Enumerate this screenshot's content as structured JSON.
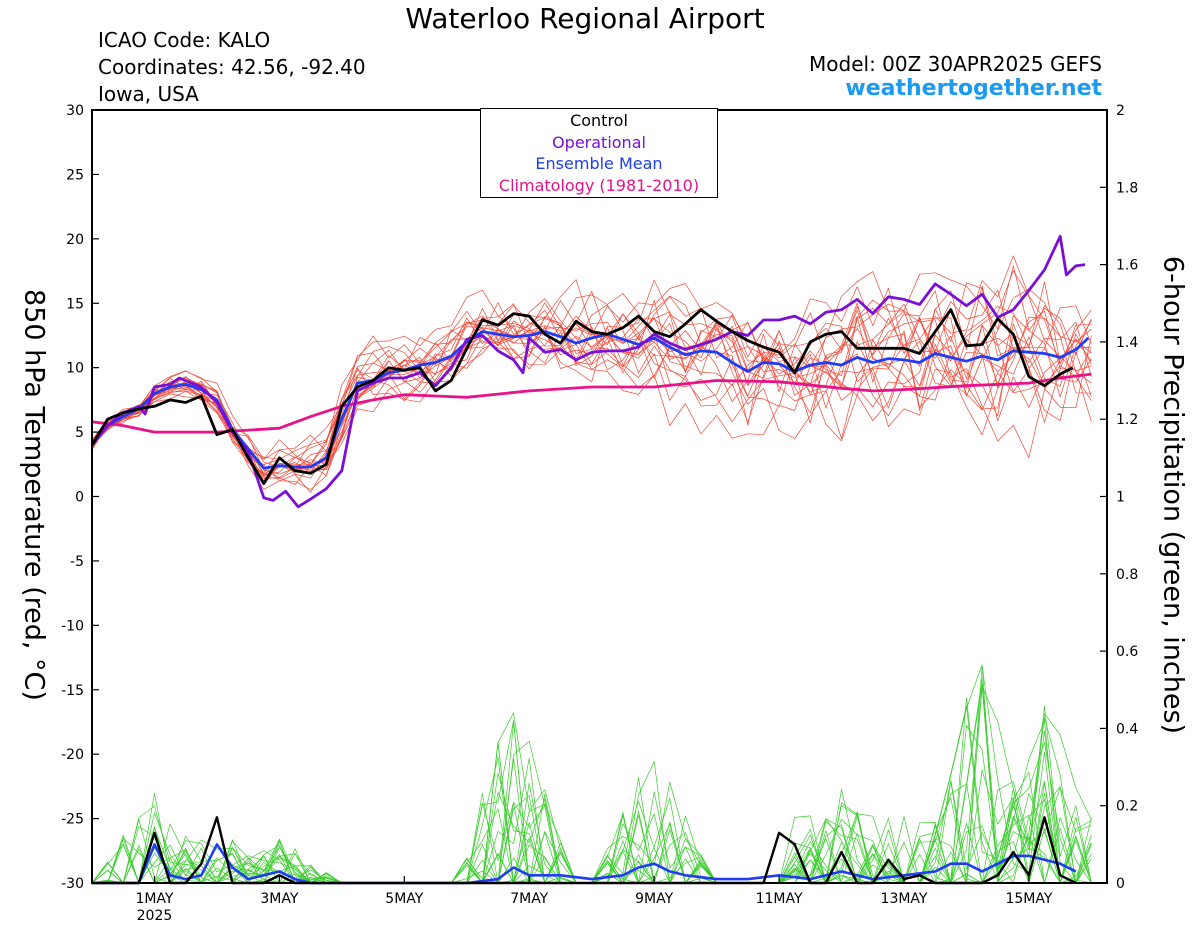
{
  "header": {
    "title": "Waterloo Regional Airport",
    "icao": "ICAO Code: KALO",
    "coords": "Coordinates: 42.56, -92.40",
    "region": "Iowa, USA",
    "model": "Model: 00Z 30APR2025 GEFS",
    "site": "weathertogether.net"
  },
  "colors": {
    "control": "#000000",
    "operational": "#7a0fd6",
    "ensemble_mean": "#1f3df5",
    "climatology": "#e8128a",
    "members_temp": "#f04a3a",
    "members_precip": "#3ccc2e",
    "site": "#1a9bf0"
  },
  "chart_data": {
    "type": "line",
    "title": "Waterloo Regional Airport",
    "ylabel_left": "850 hPa Temperature (red, °C)",
    "ylabel_right": "6-hour Precipitation (green, inches)",
    "ylim_left": [
      -30,
      30
    ],
    "ylim_right": [
      0,
      2
    ],
    "yticks_left": [
      30,
      25,
      20,
      15,
      10,
      5,
      0,
      -5,
      -10,
      -15,
      -20,
      -25,
      -30
    ],
    "yticks_right": [
      2,
      1.8,
      1.6,
      1.4,
      1.2,
      1,
      0.8,
      0.6,
      0.4,
      0.2,
      0
    ],
    "xlim_days": [
      0,
      16.25
    ],
    "xticks": [
      {
        "day": 1,
        "label": "1MAY",
        "sub": "2025"
      },
      {
        "day": 3,
        "label": "3MAY",
        "sub": ""
      },
      {
        "day": 5,
        "label": "5MAY",
        "sub": ""
      },
      {
        "day": 7,
        "label": "7MAY",
        "sub": ""
      },
      {
        "day": 9,
        "label": "9MAY",
        "sub": ""
      },
      {
        "day": 11,
        "label": "11MAY",
        "sub": ""
      },
      {
        "day": 13,
        "label": "13MAY",
        "sub": ""
      },
      {
        "day": 15,
        "label": "15MAY",
        "sub": ""
      }
    ],
    "legend": [
      "Control",
      "Operational",
      "Ensemble Mean",
      "Climatology (1981-2010)"
    ],
    "legend_position": "top-center",
    "grid": false,
    "temperature": {
      "control": [
        [
          0,
          4
        ],
        [
          0.25,
          6
        ],
        [
          0.5,
          6.5
        ],
        [
          0.75,
          6.8
        ],
        [
          1,
          7
        ],
        [
          1.25,
          7.5
        ],
        [
          1.5,
          7.3
        ],
        [
          1.75,
          7.8
        ],
        [
          2,
          4.8
        ],
        [
          2.25,
          5.2
        ],
        [
          2.5,
          3
        ],
        [
          2.75,
          1
        ],
        [
          3,
          3
        ],
        [
          3.25,
          2
        ],
        [
          3.5,
          1.8
        ],
        [
          3.75,
          2.5
        ],
        [
          4,
          7
        ],
        [
          4.25,
          8.5
        ],
        [
          4.5,
          9
        ],
        [
          4.75,
          10
        ],
        [
          5,
          9.8
        ],
        [
          5.25,
          10
        ],
        [
          5.5,
          8.2
        ],
        [
          5.75,
          9
        ],
        [
          6,
          11.5
        ],
        [
          6.25,
          13.7
        ],
        [
          6.5,
          13.3
        ],
        [
          6.75,
          14.2
        ],
        [
          7,
          14
        ],
        [
          7.25,
          12.6
        ],
        [
          7.5,
          11.9
        ],
        [
          7.75,
          13.6
        ],
        [
          8,
          12.8
        ],
        [
          8.25,
          12.6
        ],
        [
          8.5,
          13.1
        ],
        [
          8.75,
          14
        ],
        [
          9,
          12.8
        ],
        [
          9.25,
          12.4
        ],
        [
          9.5,
          13.4
        ],
        [
          9.75,
          14.5
        ],
        [
          10,
          13.6
        ],
        [
          10.25,
          12.8
        ],
        [
          10.5,
          12.1
        ],
        [
          10.75,
          11.6
        ],
        [
          11,
          11.2
        ],
        [
          11.25,
          9.6
        ],
        [
          11.5,
          12
        ],
        [
          11.75,
          12.6
        ],
        [
          12,
          12.8
        ],
        [
          12.25,
          11.5
        ],
        [
          12.5,
          11.5
        ],
        [
          12.75,
          11.5
        ],
        [
          13,
          11.5
        ],
        [
          13.25,
          11.1
        ],
        [
          13.5,
          12.8
        ],
        [
          13.75,
          14.5
        ],
        [
          14,
          11.7
        ],
        [
          14.25,
          11.8
        ],
        [
          14.5,
          13.8
        ],
        [
          14.75,
          12.6
        ],
        [
          15,
          9.3
        ],
        [
          15.25,
          8.6
        ],
        [
          15.5,
          9.5
        ],
        [
          15.7,
          10
        ]
      ],
      "operational": [
        [
          0,
          4
        ],
        [
          0.25,
          5.5
        ],
        [
          0.5,
          6.5
        ],
        [
          0.75,
          7
        ],
        [
          0.85,
          6.4
        ],
        [
          1,
          8.5
        ],
        [
          1.25,
          8.7
        ],
        [
          1.4,
          9.2
        ],
        [
          1.75,
          8.5
        ],
        [
          2,
          7.3
        ],
        [
          2.25,
          5
        ],
        [
          2.5,
          3.5
        ],
        [
          2.75,
          -0.1
        ],
        [
          2.9,
          -0.3
        ],
        [
          3.1,
          0.4
        ],
        [
          3.3,
          -0.8
        ],
        [
          3.5,
          -0.2
        ],
        [
          3.75,
          0.6
        ],
        [
          4,
          2
        ],
        [
          4.25,
          8.2
        ],
        [
          4.5,
          8.8
        ],
        [
          4.75,
          9.2
        ],
        [
          5,
          9.2
        ],
        [
          5.25,
          9.6
        ],
        [
          5.5,
          8.6
        ],
        [
          5.75,
          10
        ],
        [
          6,
          12.2
        ],
        [
          6.25,
          12.5
        ],
        [
          6.5,
          11.3
        ],
        [
          6.75,
          10.6
        ],
        [
          6.9,
          9.6
        ],
        [
          7,
          12.3
        ],
        [
          7.25,
          11.2
        ],
        [
          7.5,
          11.4
        ],
        [
          7.75,
          10.6
        ],
        [
          8,
          11.2
        ],
        [
          8.25,
          11.3
        ],
        [
          8.5,
          11.3
        ],
        [
          8.75,
          11.6
        ],
        [
          9,
          12.6
        ],
        [
          9.25,
          11.9
        ],
        [
          9.5,
          11.4
        ],
        [
          9.75,
          11.8
        ],
        [
          10,
          12.2
        ],
        [
          10.25,
          12.8
        ],
        [
          10.5,
          12.5
        ],
        [
          10.75,
          13.7
        ],
        [
          11,
          13.7
        ],
        [
          11.25,
          14
        ],
        [
          11.5,
          13.4
        ],
        [
          11.75,
          14.3
        ],
        [
          12,
          14.5
        ],
        [
          12.25,
          15.3
        ],
        [
          12.5,
          14.2
        ],
        [
          12.75,
          15.5
        ],
        [
          13,
          15.3
        ],
        [
          13.25,
          14.9
        ],
        [
          13.5,
          16.5
        ],
        [
          13.75,
          15.7
        ],
        [
          14,
          14.8
        ],
        [
          14.25,
          15.7
        ],
        [
          14.5,
          13.9
        ],
        [
          14.75,
          14.5
        ],
        [
          15,
          16
        ],
        [
          15.25,
          17.6
        ],
        [
          15.5,
          20.2
        ],
        [
          15.6,
          17.2
        ],
        [
          15.75,
          17.9
        ],
        [
          15.9,
          18
        ]
      ],
      "ensemble_mean": [
        [
          0,
          4
        ],
        [
          0.25,
          5.5
        ],
        [
          0.5,
          6.2
        ],
        [
          0.75,
          6.8
        ],
        [
          1,
          8
        ],
        [
          1.25,
          8.5
        ],
        [
          1.5,
          8.7
        ],
        [
          1.75,
          8.3
        ],
        [
          2,
          7.5
        ],
        [
          2.25,
          5.2
        ],
        [
          2.5,
          3.7
        ],
        [
          2.75,
          2.2
        ],
        [
          3,
          2.4
        ],
        [
          3.25,
          2.3
        ],
        [
          3.5,
          2.3
        ],
        [
          3.75,
          3
        ],
        [
          4,
          6
        ],
        [
          4.25,
          8.8
        ],
        [
          4.5,
          9
        ],
        [
          4.75,
          9.6
        ],
        [
          5,
          9.8
        ],
        [
          5.25,
          10.2
        ],
        [
          5.5,
          10.4
        ],
        [
          5.75,
          10.9
        ],
        [
          6,
          12
        ],
        [
          6.25,
          12.8
        ],
        [
          6.5,
          12.6
        ],
        [
          6.75,
          12.4
        ],
        [
          7,
          12.5
        ],
        [
          7.25,
          12.8
        ],
        [
          7.5,
          12.4
        ],
        [
          7.75,
          11.9
        ],
        [
          8,
          12.3
        ],
        [
          8.25,
          12.6
        ],
        [
          8.5,
          12.2
        ],
        [
          8.75,
          11.8
        ],
        [
          9,
          12.3
        ],
        [
          9.25,
          11.6
        ],
        [
          9.5,
          11
        ],
        [
          9.75,
          11.3
        ],
        [
          10,
          11.2
        ],
        [
          10.25,
          10.4
        ],
        [
          10.5,
          9.7
        ],
        [
          10.75,
          10.4
        ],
        [
          11,
          10.3
        ],
        [
          11.25,
          9.7
        ],
        [
          11.5,
          10.2
        ],
        [
          11.75,
          10.4
        ],
        [
          12,
          10.2
        ],
        [
          12.25,
          10.8
        ],
        [
          12.5,
          10.4
        ],
        [
          12.75,
          10.7
        ],
        [
          13,
          10.6
        ],
        [
          13.25,
          10.4
        ],
        [
          13.5,
          11.1
        ],
        [
          13.75,
          10.8
        ],
        [
          14,
          10.5
        ],
        [
          14.25,
          10.9
        ],
        [
          14.5,
          10.6
        ],
        [
          14.75,
          11.3
        ],
        [
          15,
          11.2
        ],
        [
          15.25,
          11.1
        ],
        [
          15.5,
          10.8
        ],
        [
          15.75,
          11.4
        ],
        [
          15.95,
          12.3
        ]
      ],
      "climatology": [
        [
          0,
          5.8
        ],
        [
          0.5,
          5.5
        ],
        [
          1,
          5
        ],
        [
          2,
          5
        ],
        [
          3,
          5.3
        ],
        [
          3.5,
          6.2
        ],
        [
          4,
          7
        ],
        [
          4.5,
          7.5
        ],
        [
          5,
          7.9
        ],
        [
          5.5,
          7.8
        ],
        [
          6,
          7.7
        ],
        [
          7,
          8.2
        ],
        [
          8,
          8.5
        ],
        [
          9,
          8.5
        ],
        [
          10,
          9
        ],
        [
          11,
          8.9
        ],
        [
          12,
          8.4
        ],
        [
          12.5,
          8.2
        ],
        [
          13,
          8.3
        ],
        [
          14,
          8.6
        ],
        [
          15,
          8.8
        ],
        [
          15.5,
          9.2
        ],
        [
          16,
          9.5
        ]
      ]
    },
    "precipitation": {
      "control": [
        [
          0,
          0
        ],
        [
          0.5,
          0
        ],
        [
          0.75,
          0
        ],
        [
          1,
          0.13
        ],
        [
          1.25,
          0
        ],
        [
          1.5,
          0
        ],
        [
          1.75,
          0.05
        ],
        [
          2,
          0.17
        ],
        [
          2.25,
          0
        ],
        [
          2.5,
          0
        ],
        [
          2.75,
          0
        ],
        [
          3,
          0.02
        ],
        [
          3.25,
          0
        ],
        [
          3.5,
          0
        ],
        [
          4,
          0
        ],
        [
          5,
          0
        ],
        [
          6,
          0
        ],
        [
          7,
          0
        ],
        [
          8,
          0
        ],
        [
          9,
          0
        ],
        [
          10,
          0
        ],
        [
          10.75,
          0
        ],
        [
          11,
          0.13
        ],
        [
          11.25,
          0.1
        ],
        [
          11.5,
          0
        ],
        [
          11.75,
          0
        ],
        [
          12,
          0.08
        ],
        [
          12.25,
          0
        ],
        [
          12.5,
          0
        ],
        [
          12.75,
          0.06
        ],
        [
          13,
          0.01
        ],
        [
          13.25,
          0.02
        ],
        [
          13.5,
          0
        ],
        [
          14,
          0
        ],
        [
          14.25,
          0
        ],
        [
          14.5,
          0.02
        ],
        [
          14.75,
          0.08
        ],
        [
          15,
          0.02
        ],
        [
          15.25,
          0.17
        ],
        [
          15.5,
          0.02
        ],
        [
          15.75,
          0
        ]
      ],
      "ensemble_mean": [
        [
          0,
          0
        ],
        [
          0.5,
          0
        ],
        [
          0.75,
          0
        ],
        [
          1,
          0.1
        ],
        [
          1.25,
          0.02
        ],
        [
          1.5,
          0.01
        ],
        [
          1.75,
          0.02
        ],
        [
          2,
          0.1
        ],
        [
          2.25,
          0.04
        ],
        [
          2.5,
          0.01
        ],
        [
          2.75,
          0.02
        ],
        [
          3,
          0.03
        ],
        [
          3.25,
          0.01
        ],
        [
          3.5,
          0
        ],
        [
          4,
          0
        ],
        [
          5,
          0
        ],
        [
          6,
          0
        ],
        [
          6.5,
          0.01
        ],
        [
          6.75,
          0.04
        ],
        [
          7,
          0.02
        ],
        [
          7.5,
          0.02
        ],
        [
          8,
          0.01
        ],
        [
          8.5,
          0.02
        ],
        [
          8.75,
          0.04
        ],
        [
          9,
          0.05
        ],
        [
          9.25,
          0.03
        ],
        [
          9.5,
          0.02
        ],
        [
          10,
          0.01
        ],
        [
          10.5,
          0.01
        ],
        [
          11,
          0.02
        ],
        [
          11.5,
          0.01
        ],
        [
          12,
          0.03
        ],
        [
          12.5,
          0.01
        ],
        [
          13,
          0.02
        ],
        [
          13.5,
          0.03
        ],
        [
          13.75,
          0.05
        ],
        [
          14,
          0.05
        ],
        [
          14.25,
          0.03
        ],
        [
          14.5,
          0.05
        ],
        [
          14.75,
          0.07
        ],
        [
          15,
          0.07
        ],
        [
          15.25,
          0.06
        ],
        [
          15.5,
          0.05
        ],
        [
          15.75,
          0.03
        ]
      ]
    }
  }
}
